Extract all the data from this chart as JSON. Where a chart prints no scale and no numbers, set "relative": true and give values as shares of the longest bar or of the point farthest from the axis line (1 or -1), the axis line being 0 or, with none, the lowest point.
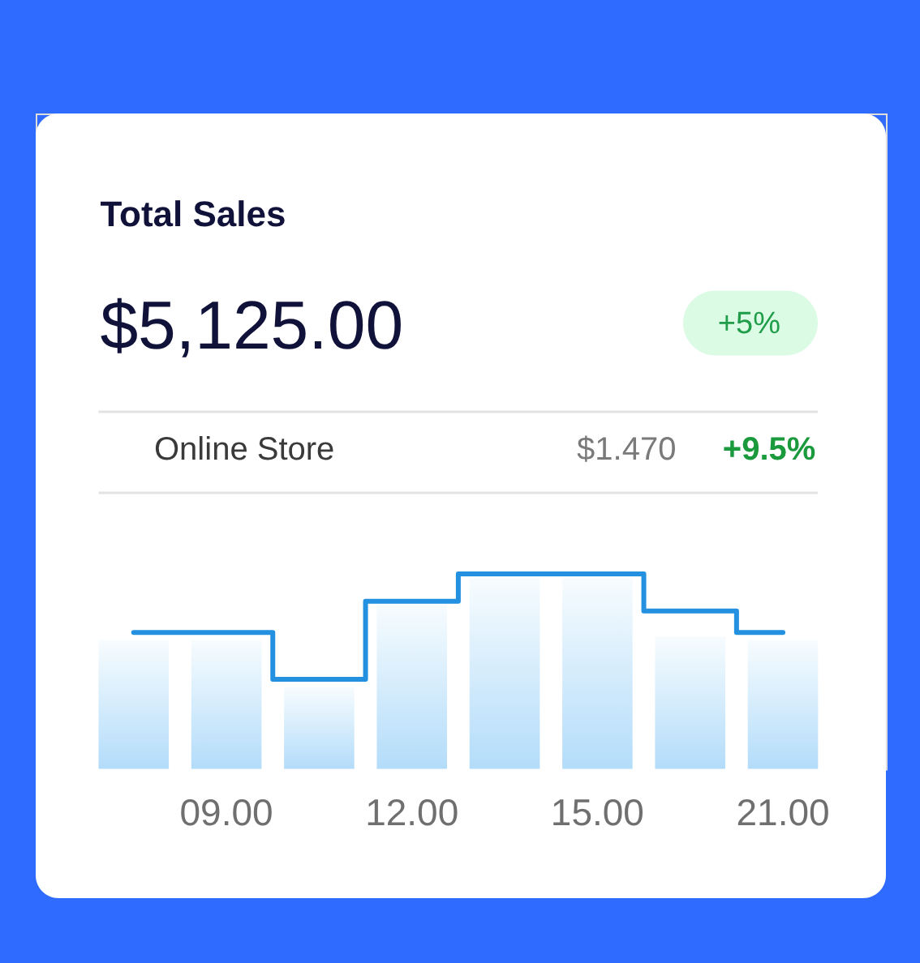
{
  "chart_data": {
    "type": "bar",
    "title": "Total Sales",
    "subtitle": "$5,125.00",
    "annotations": [
      "+5%",
      "Online Store",
      "$1.470",
      "+9.5%"
    ],
    "relative": true,
    "categories": [
      null,
      "09.00",
      null,
      "12.00",
      null,
      "15.00",
      null,
      "21.00"
    ],
    "series": [
      {
        "color": "#b3dcfa",
        "values": [
          0.66,
          0.66,
          0.42,
          0.84,
          0.98,
          0.98,
          0.68,
          0.66
        ]
      },
      {
        "type": "step",
        "color": "#2490e0",
        "values": [
          0.7,
          0.7,
          0.46,
          0.86,
          1,
          1,
          0.81,
          0.7
        ]
      }
    ]
  }
}
